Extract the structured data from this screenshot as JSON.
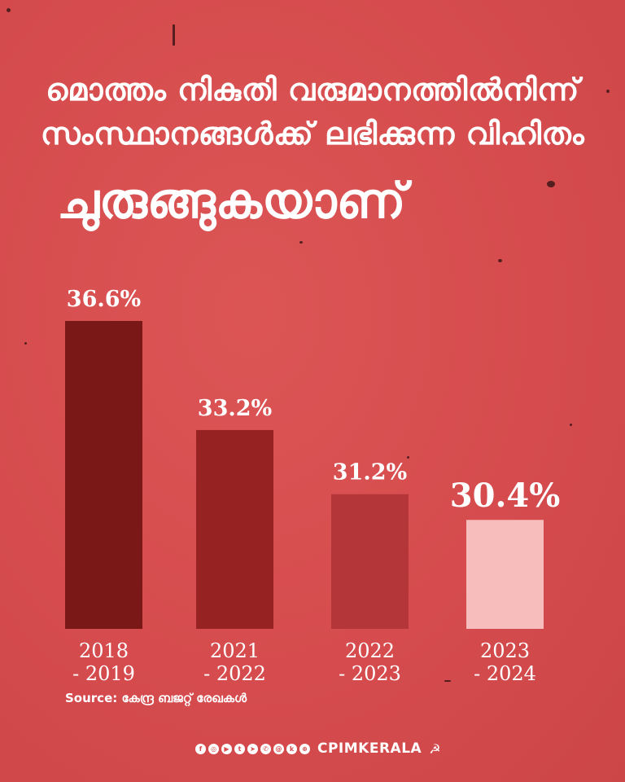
{
  "headline": {
    "line1": "മൊത്തം നികുതി വരുമാനത്തിൽനിന്ന്",
    "line2": "സംസ്ഥാനങ്ങൾക്ക് ലഭിക്കുന്ന വിഹിതം",
    "line3": "ചുരുങ്ങുകയാണ്"
  },
  "chart_data": {
    "type": "bar",
    "categories": [
      "2018\n- 2019",
      "2021\n- 2022",
      "2022\n- 2023",
      "2023\n- 2024"
    ],
    "values": [
      36.6,
      33.2,
      31.2,
      30.4
    ],
    "value_labels": [
      "36.6%",
      "33.2%",
      "31.2%",
      "30.4%"
    ],
    "bar_colors": [
      "#7a1818",
      "#962222",
      "#b53638",
      "#f7bcbc"
    ],
    "title": "",
    "xlabel": "",
    "ylabel": "",
    "grid": false
  },
  "source": "Source: കേന്ദ്ര ബജറ്റ് രേഖകൾ",
  "footer": {
    "social_icons": [
      "facebook-icon",
      "instagram-icon",
      "youtube-icon",
      "twitter-icon",
      "telegram-icon",
      "whatsapp-icon",
      "threads-icon",
      "koo-icon",
      "globe-icon"
    ],
    "brand": "CPIMKERALA",
    "emblem": "hammer-sickle-icon"
  }
}
